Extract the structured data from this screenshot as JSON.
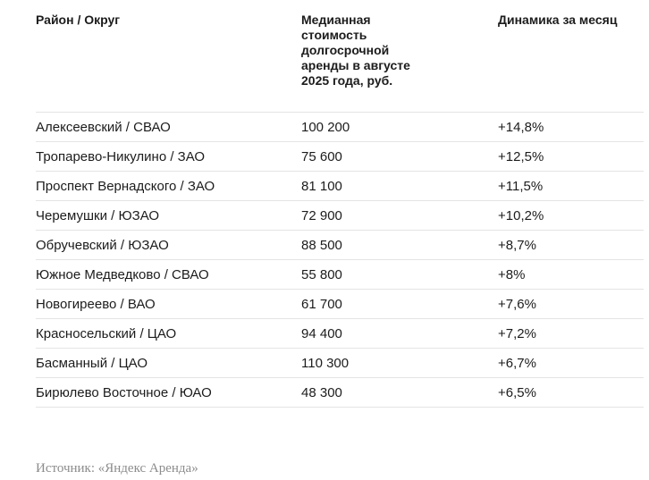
{
  "table": {
    "headers": {
      "district": "Район / Округ",
      "price": "Медианная стоимость долгосрочной аренды в августе 2025 года, руб.",
      "change": "Динамика за месяц"
    },
    "rows": [
      {
        "district": "Алексеевский / СВАО",
        "price": "100 200",
        "change": "+14,8%"
      },
      {
        "district": "Тропарево-Никулино / ЗАО",
        "price": "75 600",
        "change": "+12,5%"
      },
      {
        "district": "Проспект Вернадского / ЗАО",
        "price": "81 100",
        "change": "+11,5%"
      },
      {
        "district": "Черемушки / ЮЗАО",
        "price": "72 900",
        "change": "+10,2%"
      },
      {
        "district": "Обручевский / ЮЗАО",
        "price": "88 500",
        "change": "+8,7%"
      },
      {
        "district": "Южное Медведково / СВАО",
        "price": "55 800",
        "change": "+8%"
      },
      {
        "district": "Новогиреево / ВАО",
        "price": "61 700",
        "change": "+7,6%"
      },
      {
        "district": "Красносельский / ЦАО",
        "price": "94 400",
        "change": "+7,2%"
      },
      {
        "district": "Басманный / ЦАО",
        "price": "110 300",
        "change": "+6,7%"
      },
      {
        "district": "Бирюлево Восточное / ЮАО",
        "price": "48 300",
        "change": "+6,5%"
      }
    ]
  },
  "footer": {
    "source": "Источник: «Яндекс Аренда»"
  },
  "chart_data": {
    "type": "table",
    "title": "",
    "columns": [
      "Район / Округ",
      "Медианная стоимость долгосрочной аренды в августе 2025 года, руб.",
      "Динамика за месяц"
    ],
    "rows": [
      [
        "Алексеевский / СВАО",
        100200,
        "+14,8%"
      ],
      [
        "Тропарево-Никулино / ЗАО",
        75600,
        "+12,5%"
      ],
      [
        "Проспект Вернадского / ЗАО",
        81100,
        "+11,5%"
      ],
      [
        "Черемушки / ЮЗАО",
        72900,
        "+10,2%"
      ],
      [
        "Обручевский / ЮЗАО",
        88500,
        "+8,7%"
      ],
      [
        "Южное Медведково / СВАО",
        55800,
        "+8%"
      ],
      [
        "Новогиреево / ВАО",
        61700,
        "+7,6%"
      ],
      [
        "Красносельский / ЦАО",
        94400,
        "+7,2%"
      ],
      [
        "Басманный / ЦАО",
        110300,
        "+6,7%"
      ],
      [
        "Бирюлево Восточное / ЮАО",
        48300,
        "+6,5%"
      ]
    ],
    "source": "Источник: «Яндекс Аренда»"
  }
}
